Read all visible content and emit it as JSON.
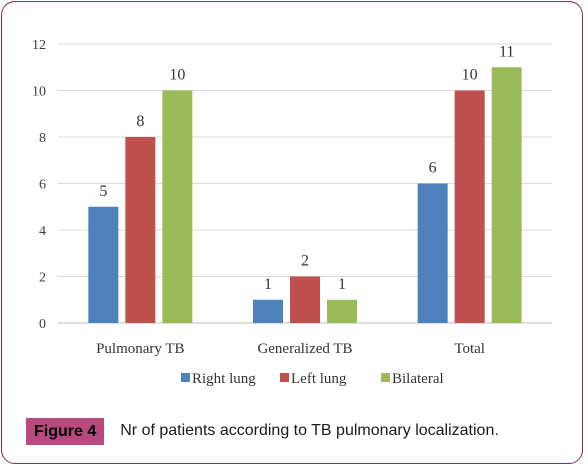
{
  "chart_data": {
    "type": "bar",
    "categories": [
      "Pulmonary TB",
      "Generalized TB",
      "Total"
    ],
    "series": [
      {
        "name": "Right lung",
        "color": "#4f81bd",
        "values": [
          5,
          1,
          6
        ]
      },
      {
        "name": "Left lung",
        "color": "#c0504d",
        "values": [
          8,
          2,
          10
        ]
      },
      {
        "name": "Bilateral",
        "color": "#9bbb59",
        "values": [
          10,
          1,
          11
        ]
      }
    ],
    "ylim": [
      0,
      12
    ],
    "yticks": [
      0,
      2,
      4,
      6,
      8,
      10,
      12
    ],
    "grid": true,
    "legend": "bottom",
    "data_labels": true
  },
  "caption": {
    "label": "Figure 4",
    "text": "Nr of patients according to TB pulmonary localization."
  }
}
